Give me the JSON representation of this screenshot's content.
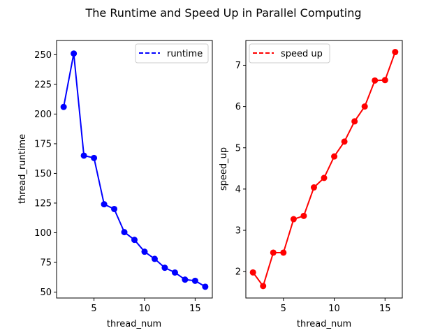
{
  "figure": {
    "title": "The Runtime and Speed Up in Parallel Computing"
  },
  "chart_data": [
    {
      "type": "line",
      "x": [
        2,
        3,
        4,
        5,
        6,
        7,
        8,
        9,
        10,
        11,
        12,
        13,
        14,
        15,
        16
      ],
      "xlabel": "thread_num",
      "ylabel": "thread_runtime",
      "xlim": [
        1.3,
        16.7
      ],
      "ylim": [
        45,
        262
      ],
      "xticks": [
        5,
        10,
        15
      ],
      "yticks": [
        50,
        75,
        100,
        125,
        150,
        175,
        200,
        225,
        250
      ],
      "grid": false,
      "legend_position": "top-right",
      "series": [
        {
          "name": "runtime",
          "color": "#0000ff",
          "legend_style": "dashed",
          "values": [
            206,
            251,
            165,
            163,
            124,
            120,
            100.5,
            94,
            84,
            78,
            70.5,
            66.5,
            60.5,
            59.5,
            54.5
          ]
        }
      ]
    },
    {
      "type": "line",
      "x": [
        2,
        3,
        4,
        5,
        6,
        7,
        8,
        9,
        10,
        11,
        12,
        13,
        14,
        15,
        16
      ],
      "xlabel": "thread_num",
      "ylabel": "speed_up",
      "xlim": [
        1.3,
        16.7
      ],
      "ylim": [
        1.36,
        7.6
      ],
      "xticks": [
        5,
        10,
        15
      ],
      "yticks": [
        2,
        3,
        4,
        5,
        6,
        7
      ],
      "grid": false,
      "legend_position": "top-left",
      "series": [
        {
          "name": "speed up",
          "color": "#ff0000",
          "legend_style": "dashed",
          "values": [
            1.98,
            1.65,
            2.46,
            2.46,
            3.27,
            3.35,
            4.04,
            4.27,
            4.79,
            5.15,
            5.64,
            6.0,
            6.63,
            6.64,
            7.32
          ]
        }
      ]
    }
  ]
}
